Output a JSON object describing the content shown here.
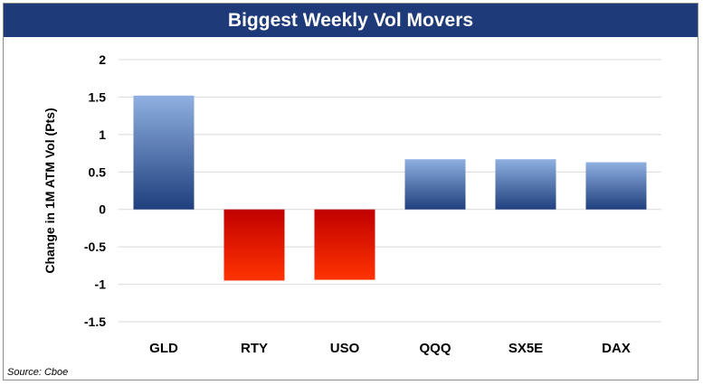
{
  "title": "Biggest Weekly Vol Movers",
  "source": "Source: Cboe",
  "colors": {
    "title_bg": "#1f3a78",
    "positive_top": "#8fb0e0",
    "positive_bottom": "#1f3f7e",
    "negative_top": "#c00000",
    "negative_bottom": "#ff3300",
    "grid": "#d9d9d9"
  },
  "chart_data": {
    "type": "bar",
    "title": "Biggest Weekly Vol Movers",
    "xlabel": "",
    "ylabel": "Change in 1M ATM Vol (Pts)",
    "categories": [
      "GLD",
      "RTY",
      "USO",
      "QQQ",
      "SX5E",
      "DAX"
    ],
    "values": [
      1.52,
      -0.95,
      -0.94,
      0.67,
      0.67,
      0.63
    ],
    "ylim": [
      -1.5,
      2
    ],
    "yticks": [
      2,
      1.5,
      1,
      0.5,
      0,
      -0.5,
      -1,
      -1.5
    ],
    "ytick_labels": [
      "2",
      "1.5",
      "1",
      "0.5",
      "0",
      "-0.5",
      "-1",
      "-1.5"
    ],
    "grid": true,
    "legend": "none"
  }
}
